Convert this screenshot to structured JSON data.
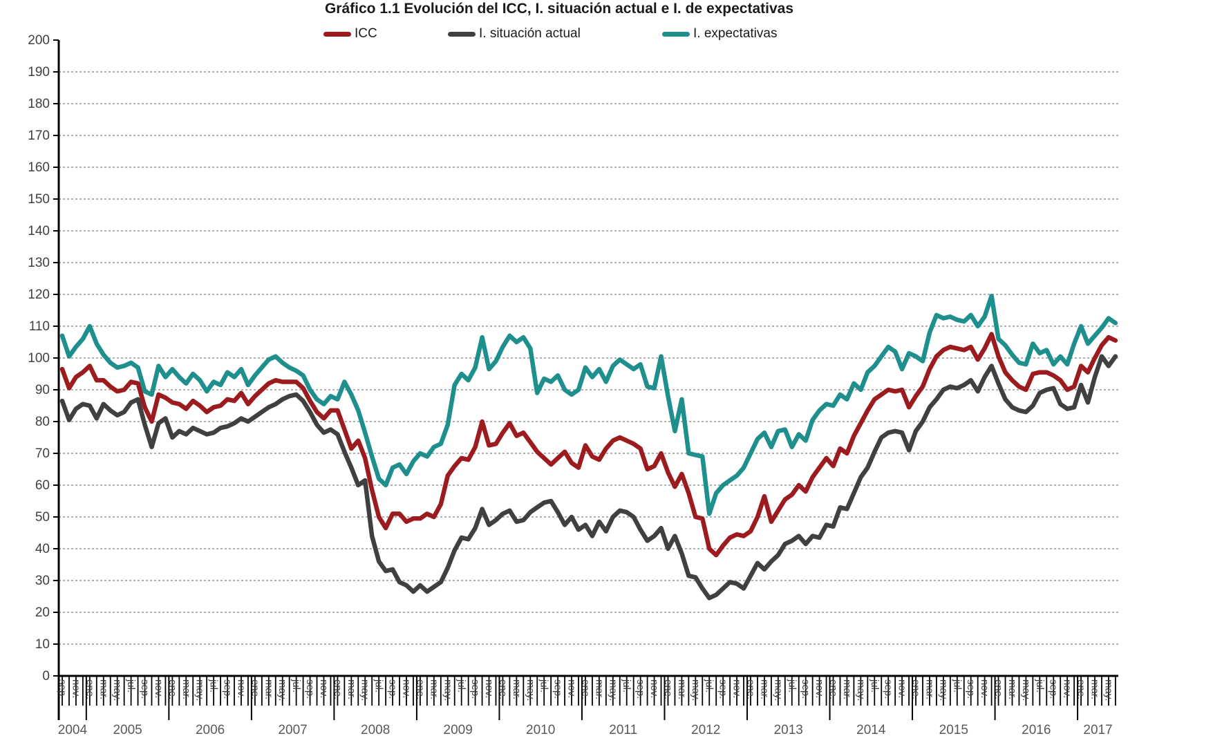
{
  "title": "Gráfico 1.1 Evolución del ICC, I. situación actual e I. de expectativas",
  "chart_data": {
    "type": "line",
    "title": "Gráfico 1.1 Evolución del ICC, I. situación actual e I. de expectativas",
    "legend_position": "top",
    "grid": "horizontal-dashed",
    "ylim": [
      0,
      200
    ],
    "ytick_step": 10,
    "x_start": "2004-09",
    "x_end": "2017-06",
    "x_unit": "month",
    "x_label_every": 2,
    "years": [
      2004,
      2005,
      2006,
      2007,
      2008,
      2009,
      2010,
      2011,
      2012,
      2013,
      2014,
      2015,
      2016,
      2017
    ],
    "month_abbrevs": [
      "ene.",
      "feb.",
      "mar.",
      "abr.",
      "may.",
      "jun.",
      "jul.",
      "ago.",
      "sep.",
      "oct.",
      "nov.",
      "dic."
    ],
    "series": [
      {
        "name": "ICC",
        "color": "#9B1B1E",
        "values": [
          96.5,
          90.5,
          94,
          95.5,
          97.5,
          93,
          93,
          91,
          89.5,
          90,
          92.5,
          92,
          84.5,
          80,
          88.5,
          87.5,
          86,
          85.5,
          84,
          86.5,
          85,
          83,
          84.5,
          85,
          87,
          86.5,
          89,
          85.5,
          88,
          90,
          92,
          93,
          92.5,
          92.5,
          92.5,
          90.5,
          86.5,
          83,
          81,
          83.5,
          83.5,
          77.5,
          71.5,
          74,
          68.5,
          58.5,
          50,
          46.5,
          51,
          51,
          48.5,
          49.5,
          49.5,
          51,
          50,
          54,
          63,
          66,
          68.5,
          68,
          72,
          80,
          72.5,
          73,
          76.5,
          79.5,
          75.5,
          76.5,
          73.5,
          70.5,
          68.5,
          66.5,
          68.5,
          70.5,
          67,
          65.5,
          72.5,
          69,
          68,
          71.5,
          74,
          75,
          74,
          73,
          71.5,
          65,
          66,
          70,
          64,
          59.5,
          63.5,
          57.5,
          50,
          49.5,
          40,
          38,
          41,
          43.5,
          44.5,
          44,
          45.5,
          50,
          56.5,
          48.5,
          52,
          55.5,
          57,
          60,
          58,
          62.5,
          65.5,
          68.5,
          66,
          71.5,
          70,
          75.5,
          79.5,
          83.5,
          87,
          88.5,
          90,
          89.5,
          90,
          84.5,
          88,
          91,
          96.5,
          100.5,
          102.5,
          103.5,
          103,
          102.5,
          103.5,
          99.5,
          103,
          107.5,
          100.5,
          95.5,
          93,
          91,
          90,
          95,
          95.5,
          95.5,
          94.5,
          93,
          90,
          91,
          97.5,
          95.5,
          100,
          104,
          106.5,
          105.5
        ]
      },
      {
        "name": "I. situación actual",
        "color": "#404040",
        "values": [
          86.5,
          80.5,
          84,
          85.5,
          85,
          81,
          85.5,
          83.5,
          82,
          83,
          86,
          87,
          79,
          72,
          79.5,
          81,
          75,
          77,
          76,
          78,
          77,
          76,
          76.5,
          78,
          78.5,
          79.5,
          81,
          80,
          81.5,
          83,
          84.5,
          85.5,
          87,
          88,
          88.5,
          86.5,
          83,
          79,
          76.5,
          77.5,
          76,
          70.5,
          65.5,
          60,
          61.5,
          44,
          36,
          33,
          33.5,
          29.5,
          28.5,
          26.5,
          28.5,
          26.5,
          28,
          29.5,
          34,
          39.5,
          43.5,
          43,
          46.5,
          52.5,
          47.5,
          49,
          51,
          52,
          48.5,
          49,
          51.5,
          53,
          54.5,
          55,
          51.5,
          47.5,
          50,
          46,
          47.5,
          44,
          48.5,
          45.5,
          50,
          52,
          51.5,
          50,
          46,
          42.5,
          44,
          46.5,
          40,
          44,
          38.5,
          31.5,
          31,
          27.5,
          24.5,
          25.5,
          27.5,
          29.5,
          29,
          27.5,
          31.5,
          35.5,
          33.5,
          36,
          38,
          41.5,
          42.5,
          44,
          41.5,
          44,
          43.5,
          47.5,
          47,
          53,
          52.5,
          57.5,
          62.5,
          65.5,
          70.5,
          75,
          76.5,
          77,
          76.5,
          71,
          77,
          80,
          84.5,
          87,
          90,
          91,
          90.5,
          91.5,
          93,
          89.5,
          94,
          97.5,
          92,
          87,
          84.5,
          83.5,
          83,
          85,
          89,
          90,
          90.5,
          85.5,
          84,
          84.5,
          91.5,
          86,
          94,
          100.5,
          97.5,
          100.5
        ]
      },
      {
        "name": "I. expectativas",
        "color": "#1F8F8D",
        "values": [
          107,
          100.5,
          103.5,
          106,
          110,
          104.5,
          101,
          98.5,
          97,
          97.5,
          98.5,
          97,
          89.5,
          88.5,
          97.5,
          94,
          96.5,
          94,
          92,
          95,
          93,
          89.5,
          92.5,
          91.5,
          95.5,
          94,
          96.5,
          91.5,
          94.5,
          97,
          99.5,
          100.5,
          98.5,
          97,
          96,
          94.5,
          90,
          87,
          85.5,
          88,
          87,
          92.5,
          88.5,
          83.5,
          76.5,
          69,
          62,
          60,
          65.5,
          66.5,
          63.5,
          67.5,
          70,
          69,
          72,
          73,
          79,
          91.5,
          95,
          93,
          97,
          106.5,
          96.5,
          99,
          103.5,
          107,
          105,
          106.5,
          103,
          89,
          93.5,
          92.5,
          94.5,
          90,
          88.5,
          90,
          97,
          94,
          96.5,
          92.5,
          97.5,
          99.5,
          98,
          96.5,
          98,
          91,
          90.5,
          100.5,
          88,
          77,
          87,
          70,
          69.5,
          69,
          51,
          57.5,
          60,
          61.5,
          63,
          65.5,
          70,
          74.5,
          76.5,
          72,
          77,
          77.5,
          72,
          76,
          74,
          80.5,
          83.5,
          85.5,
          85,
          88.5,
          87,
          92,
          90,
          95.5,
          97.5,
          100.5,
          103.5,
          102,
          96.5,
          101.5,
          100.5,
          99,
          108,
          113.5,
          112.5,
          113,
          112,
          111.5,
          113.5,
          110,
          113,
          119.5,
          106,
          104,
          101,
          98.5,
          98,
          104.5,
          101.5,
          102.5,
          98,
          100.5,
          98,
          104.5,
          110,
          104.5,
          107,
          109.5,
          112.5,
          111
        ]
      }
    ]
  },
  "style": {
    "axis_color": "#000000",
    "grid_color": "#7f7f7f",
    "ytick_label_color": "#404040",
    "month_label_color": "#3f3f3f",
    "year_label_color": "#595959"
  }
}
